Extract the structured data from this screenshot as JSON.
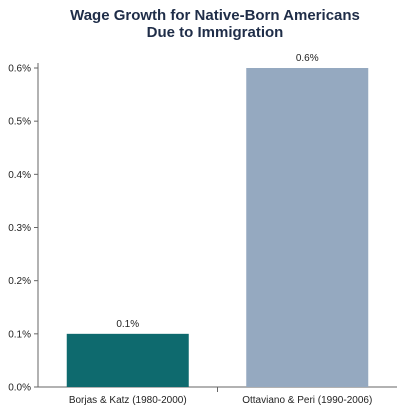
{
  "chart_data": {
    "type": "bar",
    "title": [
      "Wage Growth for Native-Born Americans",
      "Due to Immigration"
    ],
    "xlabel": "",
    "ylabel": "",
    "categories": [
      "Borjas & Katz (1980-2000)",
      "Ottaviano & Peri (1990-2006)"
    ],
    "values": [
      0.1,
      0.6
    ],
    "data_labels": [
      "0.1%",
      "0.6%"
    ],
    "bar_colors": [
      "#0e6a6e",
      "#95a9c0"
    ],
    "ylim": [
      0,
      0.6
    ],
    "yticks": [
      0,
      0.1,
      0.2,
      0.3,
      0.4,
      0.5,
      0.6
    ],
    "ytick_labels": [
      "0.0%",
      "0.1%",
      "0.2%",
      "0.3%",
      "0.4%",
      "0.5%",
      "0.6%"
    ],
    "grid": false,
    "legend": "none"
  }
}
